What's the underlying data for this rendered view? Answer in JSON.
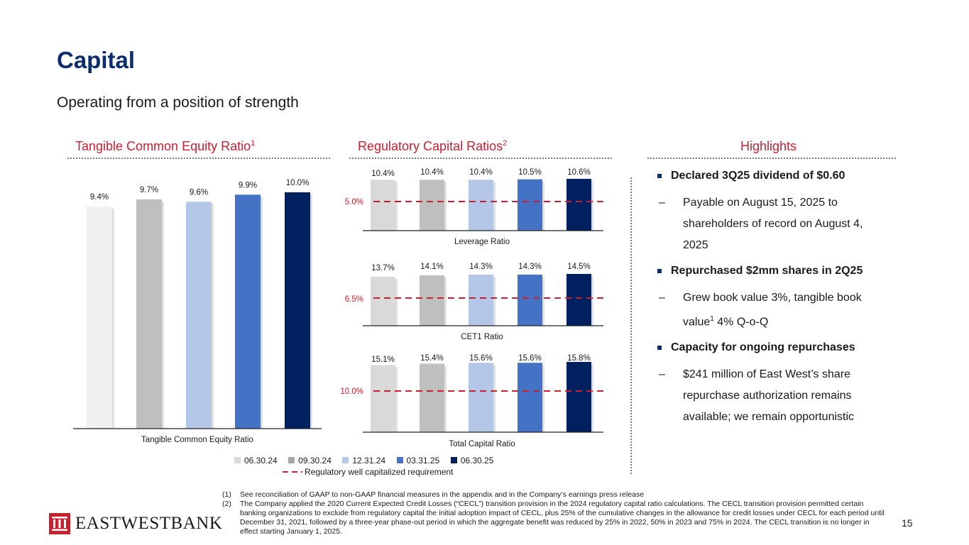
{
  "page": {
    "title": "Capital",
    "subtitle": "Operating from a position of strength",
    "page_number": "15"
  },
  "sections": {
    "tce_heading": "Tangible Common Equity Ratio",
    "tce_sup": "1",
    "reg_heading": "Regulatory Capital Ratios",
    "reg_sup": "2",
    "highlights_heading": "Highlights"
  },
  "legend": {
    "periods": [
      "06.30.24",
      "09.30.24",
      "12.31.24",
      "03.31.25",
      "06.30.25"
    ],
    "threshold_label": "Regulatory well capitalized requirement"
  },
  "colors": {
    "series": [
      "#d9d9d9",
      "#bfbfbf",
      "#b4c7e7",
      "#4472c4",
      "#002060"
    ],
    "tce_first": "#f0f0f0",
    "accent_red": "#c8202f",
    "navy": "#0b2d6b"
  },
  "chart_data": [
    {
      "type": "bar",
      "title": "Tangible Common Equity Ratio",
      "categories": [
        "06.30.24",
        "09.30.24",
        "12.31.24",
        "03.31.25",
        "06.30.25"
      ],
      "values": [
        9.4,
        9.7,
        9.6,
        9.9,
        10.0
      ],
      "labels": [
        "9.4%",
        "9.7%",
        "9.6%",
        "9.9%",
        "10.0%"
      ],
      "ylim": [
        0,
        10.0
      ]
    },
    {
      "type": "bar",
      "title": "Leverage Ratio",
      "categories": [
        "06.30.24",
        "09.30.24",
        "12.31.24",
        "03.31.25",
        "06.30.25"
      ],
      "values": [
        10.4,
        10.4,
        10.4,
        10.5,
        10.6
      ],
      "labels": [
        "10.4%",
        "10.4%",
        "10.4%",
        "10.5%",
        "10.6%"
      ],
      "threshold": 5.0,
      "threshold_label": "5.0%",
      "ylim": [
        0,
        10.6
      ]
    },
    {
      "type": "bar",
      "title": "CET1 Ratio",
      "categories": [
        "06.30.24",
        "09.30.24",
        "12.31.24",
        "03.31.25",
        "06.30.25"
      ],
      "values": [
        13.7,
        14.1,
        14.3,
        14.3,
        14.5
      ],
      "labels": [
        "13.7%",
        "14.1%",
        "14.3%",
        "14.3%",
        "14.5%"
      ],
      "threshold": 6.5,
      "threshold_label": "6.5%",
      "ylim": [
        0,
        14.5
      ]
    },
    {
      "type": "bar",
      "title": "Total Capital Ratio",
      "categories": [
        "06.30.24",
        "09.30.24",
        "12.31.24",
        "03.31.25",
        "06.30.25"
      ],
      "values": [
        15.1,
        15.4,
        15.6,
        15.6,
        15.8
      ],
      "labels": [
        "15.1%",
        "15.4%",
        "15.6%",
        "15.6%",
        "15.8%"
      ],
      "threshold": 10.0,
      "threshold_label": "10.0%",
      "ylim": [
        0,
        15.8
      ]
    }
  ],
  "highlights": {
    "b1": "Declared 3Q25 dividend of $0.60",
    "b1_sub": "Payable on August 15, 2025 to shareholders of record on August 4, 2025",
    "b2": "Repurchased $2mm shares in 2Q25",
    "b2_sub_a": "Grew book value 3%, tangible book value",
    "b2_sub_sup": "1",
    "b2_sub_b": " 4% Q-o-Q",
    "b3": "Capacity for ongoing repurchases",
    "b3_sub": "$241 million of East West’s share repurchase authorization remains available; we remain opportunistic",
    "dash": "–"
  },
  "footnotes": [
    {
      "num": "(1)",
      "text": "See reconciliation of GAAP to non-GAAP financial measures in the appendix and in the Company’s earnings press release"
    },
    {
      "num": "(2)",
      "text": "The Company applied the 2020 Current Expected Credit Losses (“CECL”) transition provision in the 2024 regulatory capital ratio calculations. The CECL transition provision permitted certain banking organizations to exclude from regulatory capital the initial adoption impact of CECL, plus 25% of the cumulative changes in the allowance for credit losses under CECL for each period until December 31, 2021, followed by a three-year phase-out period in which the aggregate benefit was reduced by 25% in 2022, 50% in 2023 and 75% in 2024. The CECL transition is no longer in effect starting January 1, 2025."
    }
  ],
  "logo": {
    "text": "EASTWESTBANK"
  }
}
